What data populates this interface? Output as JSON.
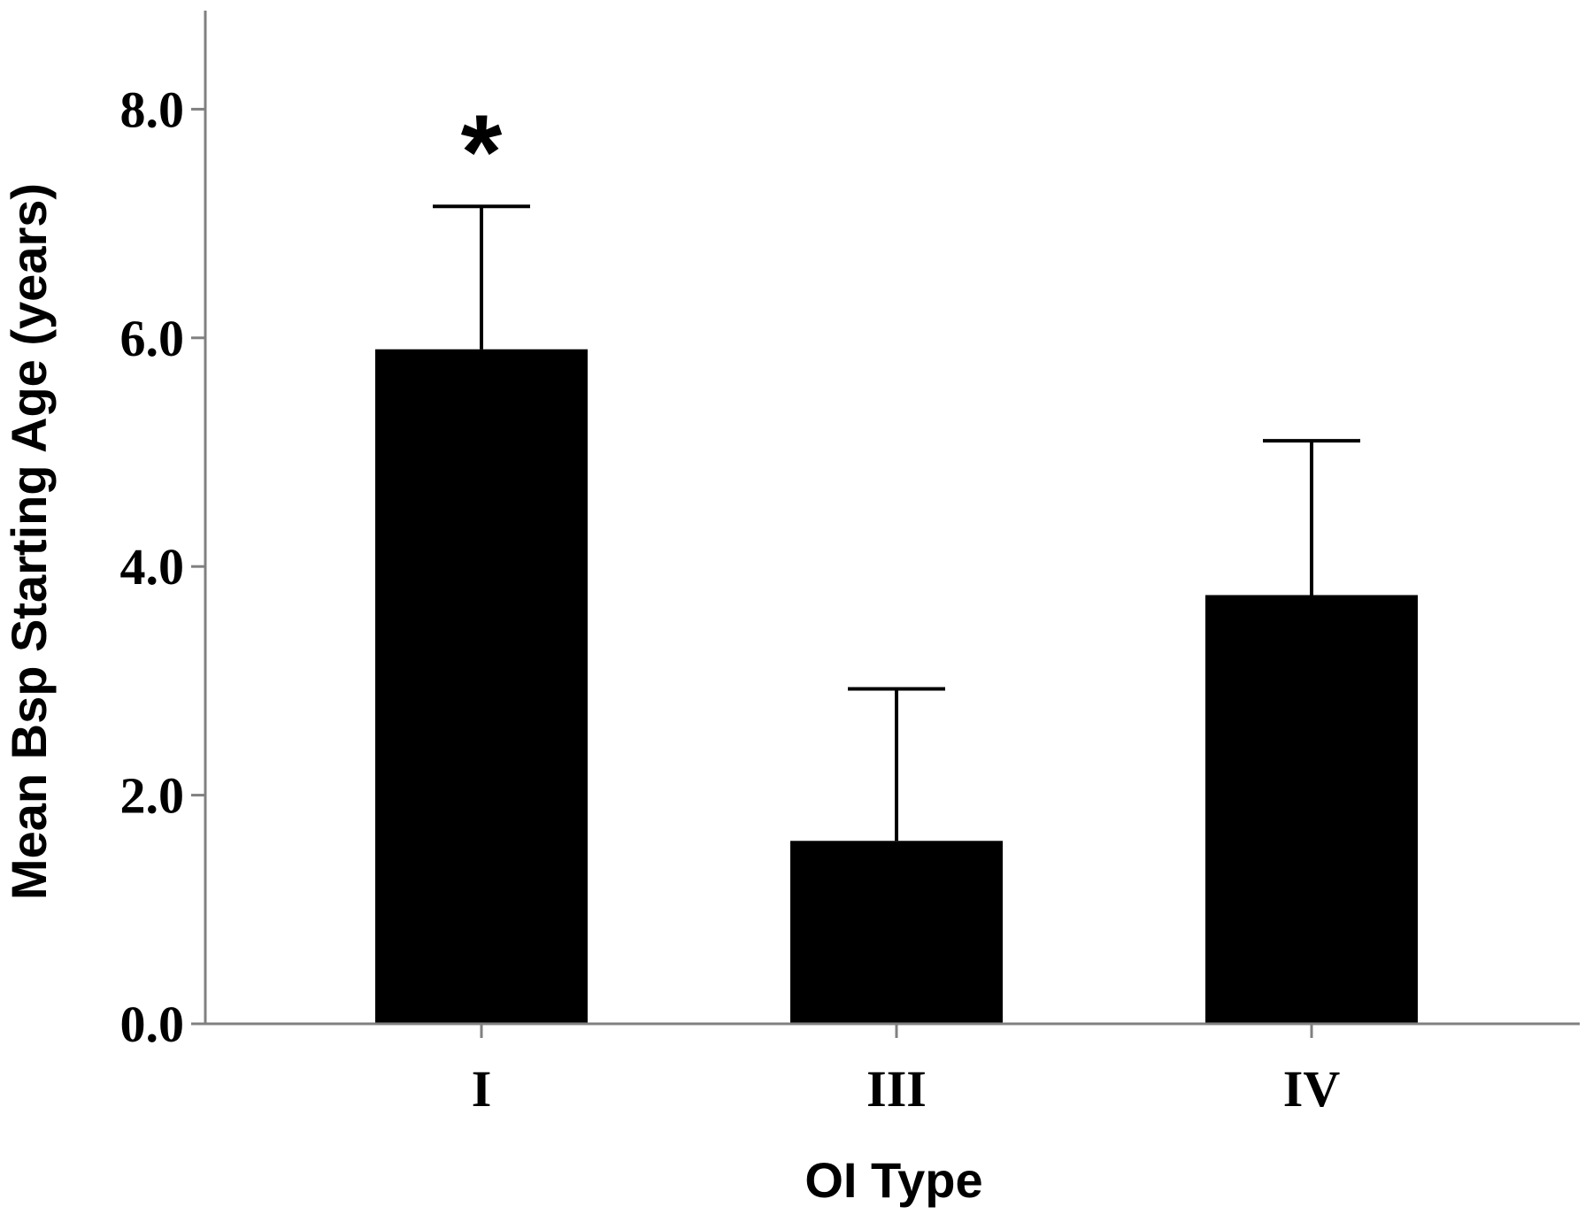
{
  "chart_data": {
    "type": "bar",
    "categories": [
      "I",
      "III",
      "IV"
    ],
    "values": [
      5.9,
      1.6,
      3.75
    ],
    "error_upper": [
      7.15,
      2.93,
      5.1
    ],
    "xlabel": "OI Type",
    "ylabel": "Mean Bsp Starting Age (years)",
    "ylim": [
      0,
      8.9
    ],
    "yticks": [
      0,
      2,
      4,
      6,
      8
    ],
    "ytick_labels": [
      "0.0",
      "2.0",
      "4.0",
      "6.0",
      "8.0"
    ],
    "annotations": [
      {
        "category": "I",
        "text": "*"
      }
    ],
    "grid": false,
    "legend": "none",
    "bar_color": "#000000",
    "axis_color": "#808080"
  }
}
